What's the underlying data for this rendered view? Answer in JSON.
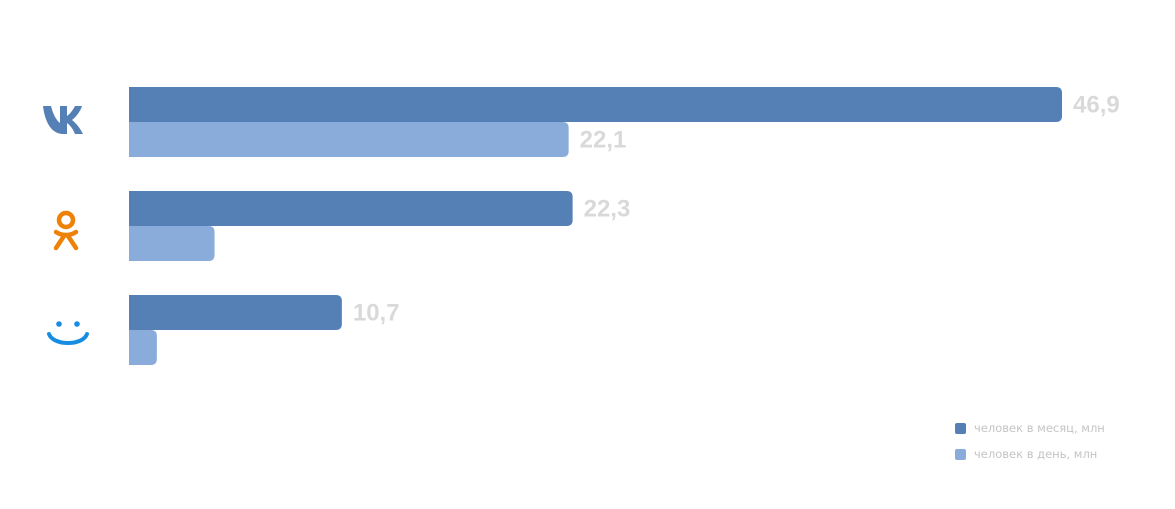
{
  "chart_data": {
    "type": "bar",
    "orientation": "horizontal",
    "categories": [
      "vk-icon",
      "odnoklassniki-icon",
      "moimir-icon"
    ],
    "series": [
      {
        "name": "человек в месяц, млн",
        "values": [
          46.9,
          22.3,
          10.7
        ],
        "labels": [
          "46,9",
          "22,3",
          "10,7"
        ],
        "color": "#5580b6"
      },
      {
        "name": "человек в день, млн",
        "values": [
          22.1,
          4.3,
          1.4
        ],
        "labels": [
          "22,1",
          "",
          ""
        ],
        "color": "#89acda"
      }
    ],
    "xlim": [
      0,
      46.9
    ],
    "grid": false,
    "legend_position": "bottom-right"
  },
  "colors": {
    "vk": "#5580b6",
    "ok": "#ee8208",
    "moimir": "#168de2",
    "label": "#d9d9d9"
  }
}
